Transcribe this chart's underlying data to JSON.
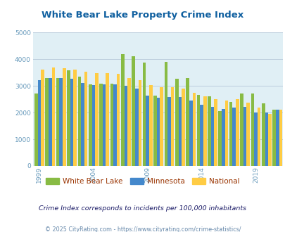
{
  "title": "White Bear Lake Property Crime Index",
  "title_color": "#1060a0",
  "background_color": "#e0eff5",
  "years": [
    1999,
    2000,
    2001,
    2002,
    2003,
    2004,
    2005,
    2006,
    2007,
    2008,
    2009,
    2010,
    2011,
    2012,
    2013,
    2014,
    2015,
    2016,
    2017,
    2018,
    2019,
    2020,
    2021
  ],
  "white_bear_lake": [
    2700,
    3300,
    3290,
    3570,
    3340,
    3060,
    3080,
    3080,
    4180,
    4100,
    3870,
    2640,
    3900,
    3260,
    3280,
    2660,
    2620,
    2050,
    2400,
    2700,
    2700,
    2350,
    2100
  ],
  "minnesota": [
    3210,
    3300,
    3290,
    3270,
    3110,
    3040,
    3060,
    3060,
    3010,
    2890,
    2630,
    2560,
    2580,
    2590,
    2450,
    2290,
    2220,
    2130,
    2180,
    2210,
    2010,
    2000,
    2100
  ],
  "national": [
    3610,
    3700,
    3660,
    3600,
    3530,
    3490,
    3480,
    3440,
    3280,
    3210,
    3020,
    2960,
    2960,
    2910,
    2740,
    2610,
    2490,
    2450,
    2490,
    2380,
    2190,
    1960,
    2100
  ],
  "wbl_color": "#88bb44",
  "mn_color": "#4488cc",
  "nat_color": "#ffcc44",
  "ylim": [
    0,
    5000
  ],
  "yticks": [
    0,
    1000,
    2000,
    3000,
    4000,
    5000
  ],
  "xtick_years": [
    1999,
    2004,
    2009,
    2014,
    2019
  ],
  "subtitle": "Crime Index corresponds to incidents per 100,000 inhabitants",
  "footer": "© 2025 CityRating.com - https://www.cityrating.com/crime-statistics/",
  "legend_labels": [
    "White Bear Lake",
    "Minnesota",
    "National"
  ],
  "legend_label_color": "#993300",
  "subtitle_color": "#1a1a66",
  "footer_color": "#6688aa",
  "grid_color": "#bbccdd",
  "tick_color": "#6699bb"
}
